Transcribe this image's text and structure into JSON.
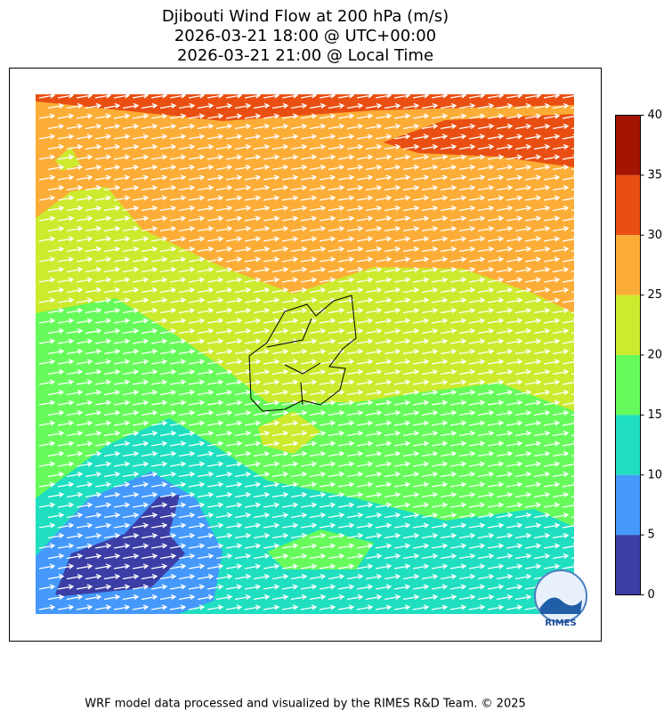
{
  "title": [
    "Djibouti Wind Flow at 200 hPa (m/s)",
    "2026-03-21 18:00 @ UTC+00:00",
    "2026-03-21 21:00 @ Local Time"
  ],
  "colorbar": {
    "clim": [
      0,
      40
    ],
    "ticks": [
      0,
      5,
      10,
      15,
      20,
      25,
      30,
      35,
      40
    ],
    "colors": [
      "#3c3ea5",
      "#4499fb",
      "#1fdfc0",
      "#66fb5a",
      "#cdea2e",
      "#fcad37",
      "#e94f12",
      "#a31402"
    ]
  },
  "logo": "RIMES",
  "footer": "WRF model data processed and visualized by the RIMES R&D Team. © 2025"
}
